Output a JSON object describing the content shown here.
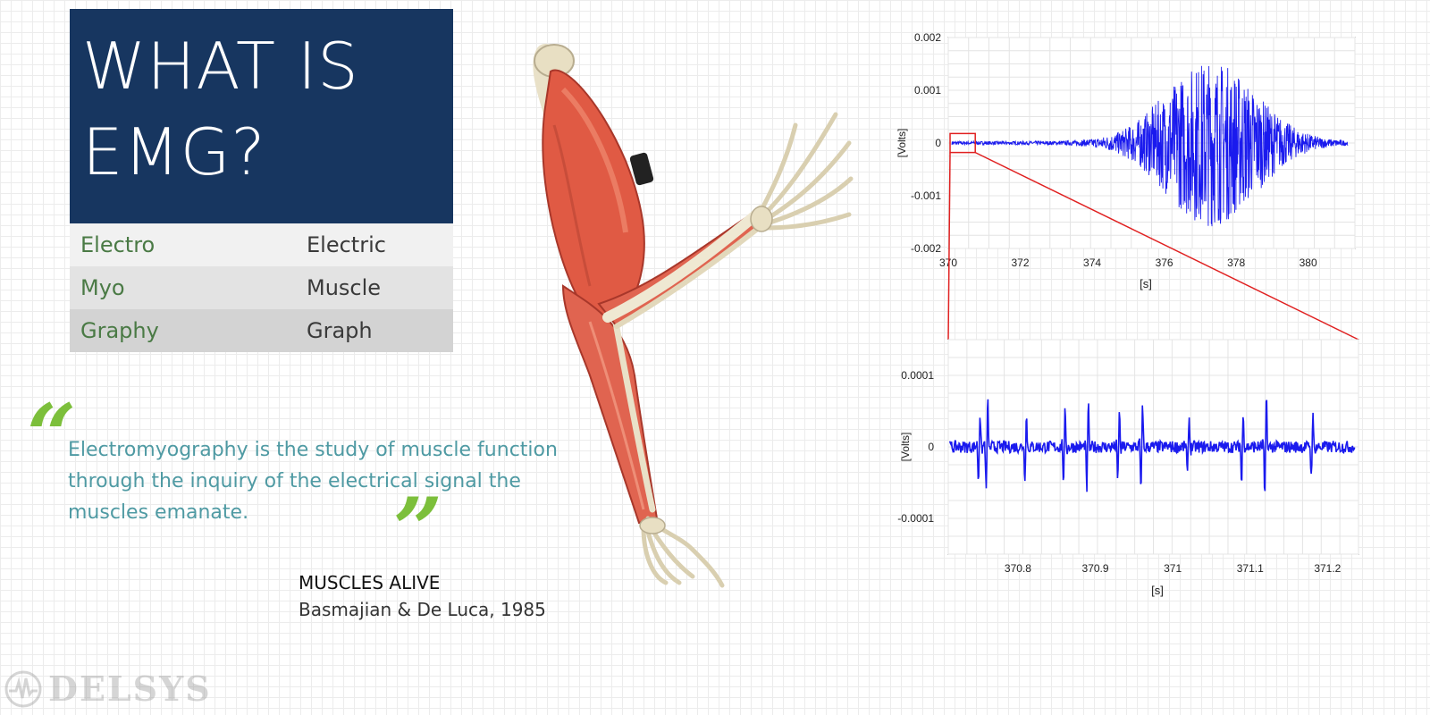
{
  "title": {
    "line1": "WHAT IS",
    "line2": "EMG?"
  },
  "definitions": [
    {
      "prefix": "Electro",
      "meaning": "Electric"
    },
    {
      "prefix": "Myo",
      "meaning": "Muscle"
    },
    {
      "prefix": "Graphy",
      "meaning": "Graph"
    }
  ],
  "quote": {
    "open_mark": "“",
    "close_mark": "”",
    "text": "Electromyography is the study of muscle function through the inquiry of the electrical signal the muscles emanate."
  },
  "source": {
    "title": "MUSCLES ALIVE",
    "citation": "Basmajian & De Luca, 1985"
  },
  "logo": {
    "text": "DELSYS"
  },
  "colors": {
    "title_bg": "#173660",
    "prefix_green": "#4a7a45",
    "quote_teal": "#4f9aa3",
    "quote_mark": "#7cbf3b",
    "signal_blue": "#1a1aee",
    "zoom_red": "#e02020"
  },
  "chart_data": [
    {
      "type": "line",
      "ylabel": "[Volts]",
      "xlabel": "[s]",
      "xlim": [
        370,
        381.3
      ],
      "ylim": [
        -0.002,
        0.002
      ],
      "xticks": [
        "370",
        "372",
        "374",
        "376",
        "378",
        "380"
      ],
      "yticks": [
        "0.002",
        "0.001",
        "0",
        "-0.001",
        "-0.002"
      ],
      "zoom_window_x": [
        370.05,
        370.75
      ]
    },
    {
      "type": "line",
      "ylabel": "[Volts]",
      "xlabel": "[s]",
      "xlim": [
        370.71,
        371.24
      ],
      "ylim": [
        -0.00015,
        0.00015
      ],
      "xticks": [
        "370.8",
        "370.9",
        "371",
        "371.1",
        "371.2"
      ],
      "yticks": [
        "0.0001",
        "0",
        "-0.0001"
      ],
      "spikes_x": [
        370.75,
        370.76,
        370.81,
        370.86,
        370.89,
        370.93,
        370.96,
        371.02,
        371.09,
        371.12,
        371.18
      ]
    }
  ]
}
